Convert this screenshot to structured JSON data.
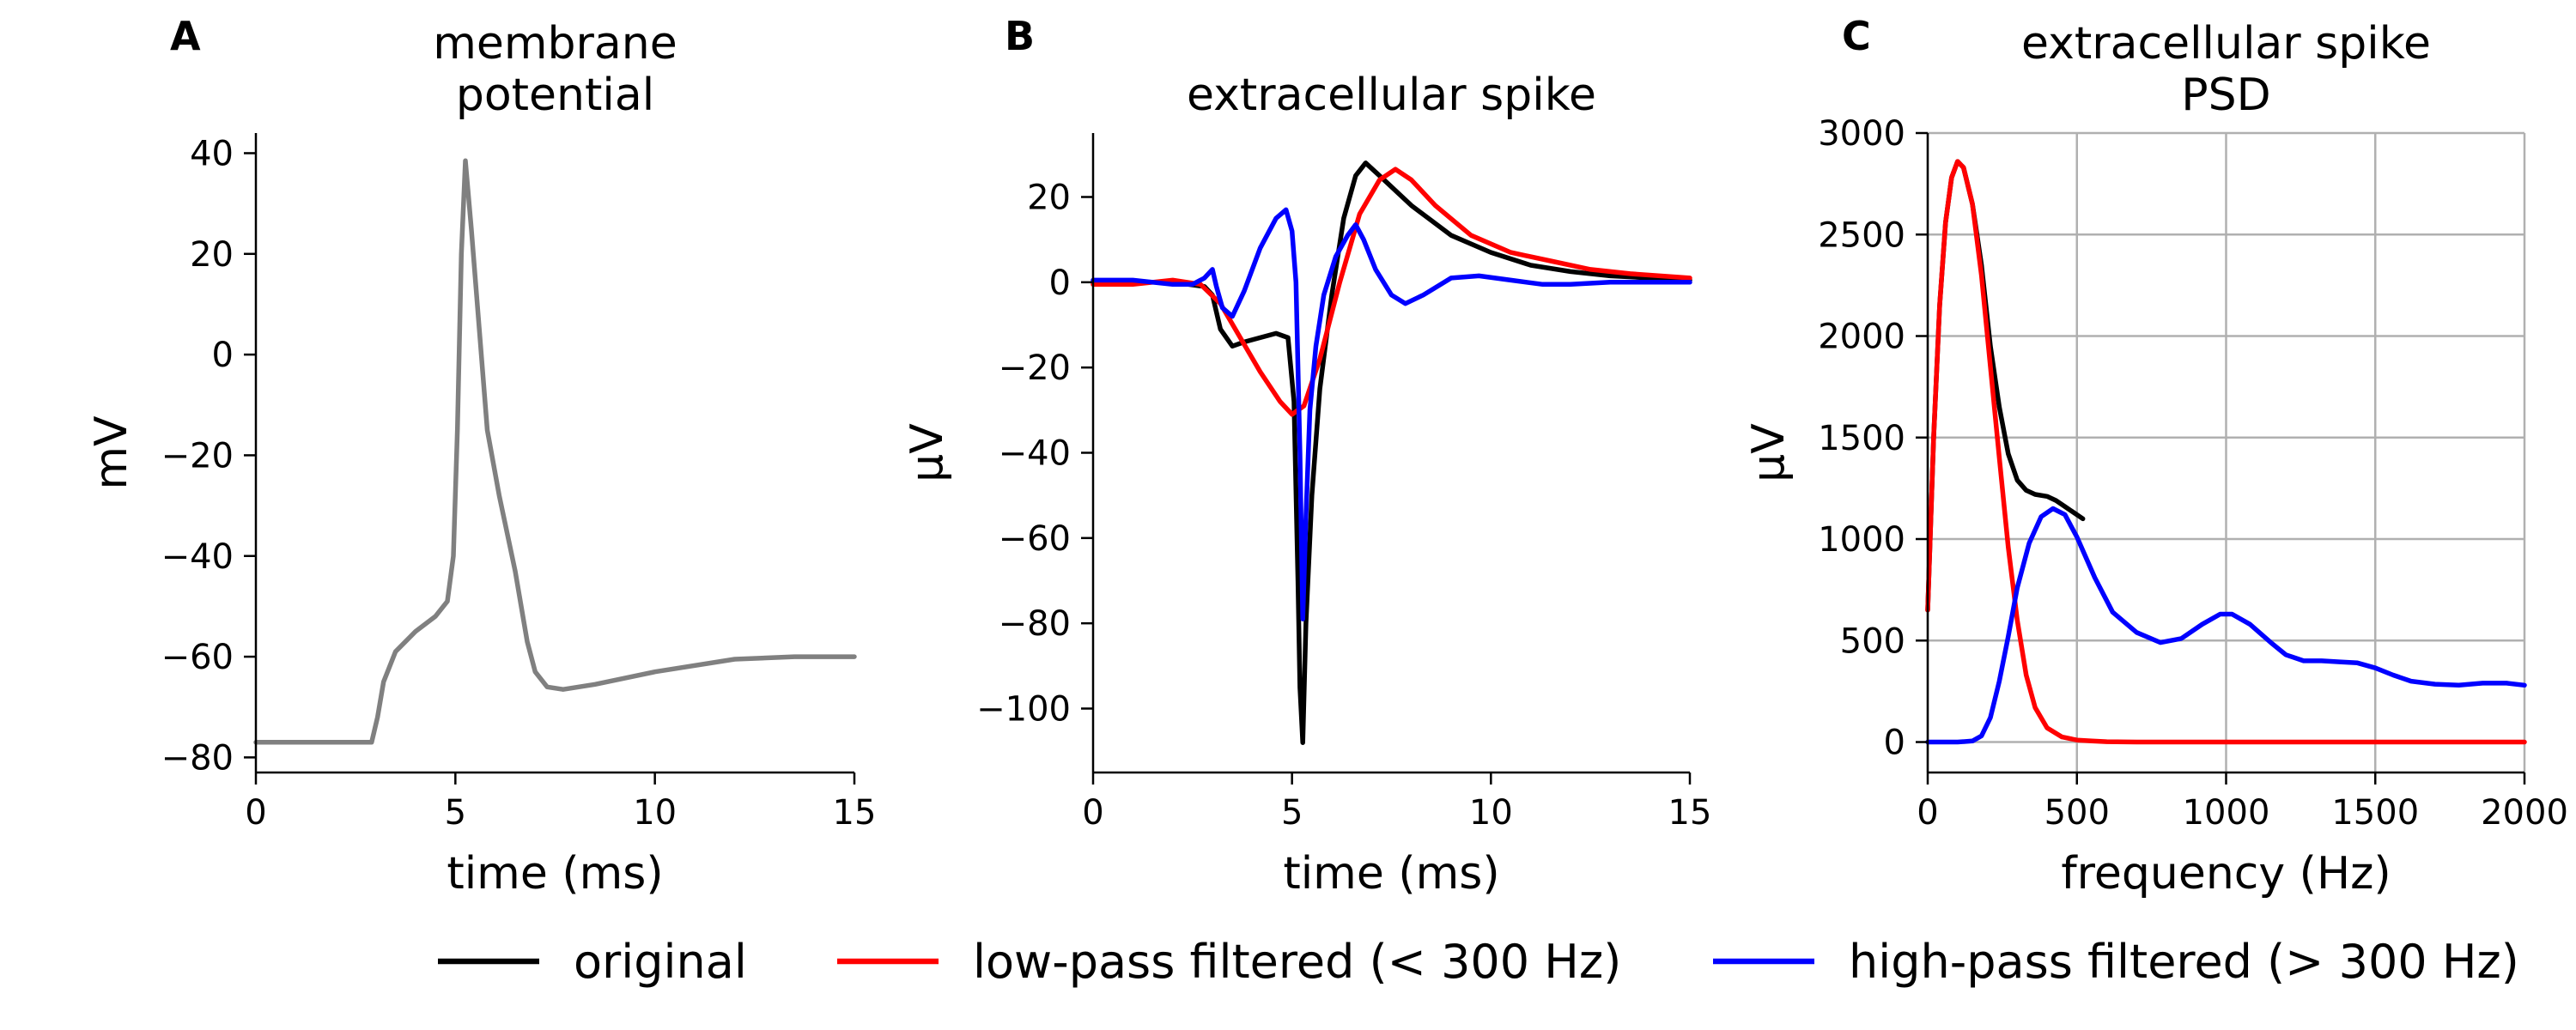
{
  "colors": {
    "membrane": "#808080",
    "original": "#000000",
    "lowpass": "#ff0000",
    "highpass": "#0000ff"
  },
  "legend": {
    "placement": "bottom-center",
    "entries": [
      {
        "label": "original",
        "color": "#000000"
      },
      {
        "label": "low-pass filtered (< 300 Hz)",
        "color": "#ff0000"
      },
      {
        "label": "high-pass filtered  (> 300 Hz)",
        "color": "#0000ff"
      }
    ]
  },
  "chart_data": [
    {
      "panel": "A",
      "type": "line",
      "title": [
        "membrane",
        "potential"
      ],
      "xlabel": "time (ms)",
      "ylabel": "mV",
      "xlim": [
        0,
        15
      ],
      "ylim": [
        -83,
        44
      ],
      "xticks": [
        0,
        5,
        10,
        15
      ],
      "yticks": [
        -80,
        -60,
        -40,
        -20,
        0,
        20,
        40
      ],
      "grid": false,
      "series": [
        {
          "key": "membrane",
          "x": [
            0,
            2.9,
            3.05,
            3.2,
            3.5,
            4.0,
            4.5,
            4.8,
            4.95,
            5.05,
            5.15,
            5.25,
            5.4,
            5.6,
            5.8,
            6.1,
            6.5,
            6.8,
            7.0,
            7.3,
            7.7,
            8.5,
            10,
            12,
            13.5,
            15
          ],
          "y": [
            -77,
            -77,
            -72,
            -65,
            -59,
            -55,
            -52,
            -49,
            -40,
            -15,
            20,
            38.5,
            25,
            5,
            -15,
            -28,
            -43,
            -57,
            -63,
            -66,
            -66.5,
            -65.5,
            -63,
            -60.5,
            -60,
            -60
          ]
        }
      ]
    },
    {
      "panel": "B",
      "type": "line",
      "title": [
        "extracellular spike"
      ],
      "xlabel": "time (ms)",
      "ylabel": "µV",
      "xlim": [
        0,
        15
      ],
      "ylim": [
        -115,
        35
      ],
      "xticks": [
        0,
        5,
        10,
        15
      ],
      "yticks": [
        -100,
        -80,
        -60,
        -40,
        -20,
        0,
        20
      ],
      "grid": false,
      "series": [
        {
          "key": "original",
          "x": [
            0,
            2.0,
            2.8,
            3.0,
            3.2,
            3.5,
            3.8,
            4.2,
            4.6,
            4.9,
            5.05,
            5.15,
            5.2,
            5.27,
            5.35,
            5.5,
            5.7,
            6.0,
            6.3,
            6.6,
            6.85,
            7.2,
            8.0,
            9.0,
            10,
            11,
            12,
            13,
            15
          ],
          "y": [
            0,
            0,
            -1,
            -3,
            -11,
            -15,
            -14,
            -13,
            -12,
            -13,
            -28,
            -70,
            -95,
            -108,
            -80,
            -50,
            -25,
            -3,
            15,
            25,
            28,
            25,
            18,
            11,
            7,
            4,
            2.5,
            1.5,
            0.5
          ]
        },
        {
          "key": "lowpass",
          "x": [
            0,
            1.0,
            2.0,
            2.7,
            3.2,
            3.7,
            4.2,
            4.7,
            5.0,
            5.3,
            5.7,
            6.2,
            6.7,
            7.2,
            7.6,
            8.0,
            8.6,
            9.5,
            10.5,
            11.5,
            12.5,
            13.5,
            15
          ],
          "y": [
            -0.5,
            -0.5,
            0.5,
            -0.5,
            -5,
            -13,
            -21,
            -28,
            -31,
            -29,
            -18,
            0,
            16,
            24,
            26.5,
            24,
            18,
            11,
            7,
            5,
            3,
            2,
            1
          ]
        },
        {
          "key": "highpass",
          "x": [
            0,
            1.0,
            2.0,
            2.5,
            2.8,
            3.0,
            3.1,
            3.25,
            3.5,
            3.8,
            4.2,
            4.6,
            4.85,
            5.0,
            5.1,
            5.2,
            5.27,
            5.35,
            5.45,
            5.6,
            5.8,
            6.1,
            6.4,
            6.6,
            6.8,
            7.1,
            7.5,
            7.85,
            8.3,
            9.0,
            9.7,
            10.5,
            11.3,
            12,
            13,
            14,
            15
          ],
          "y": [
            0.5,
            0.5,
            -0.5,
            -0.5,
            1,
            3,
            -1,
            -6,
            -8,
            -2,
            8,
            15,
            17,
            12,
            0,
            -40,
            -79,
            -55,
            -30,
            -15,
            -3,
            6,
            11,
            13.5,
            10,
            3,
            -3,
            -5,
            -3,
            1,
            1.5,
            0.5,
            -0.5,
            -0.5,
            0,
            0,
            0
          ]
        }
      ]
    },
    {
      "panel": "C",
      "type": "line",
      "title": [
        "extracellular spike",
        "PSD"
      ],
      "xlabel": "frequency (Hz)",
      "ylabel": "µV",
      "xlim": [
        0,
        2000
      ],
      "ylim": [
        -150,
        3000
      ],
      "xticks": [
        0,
        500,
        1000,
        1500,
        2000
      ],
      "yticks": [
        0,
        500,
        1000,
        1500,
        2000,
        2500,
        3000
      ],
      "grid": true,
      "series": [
        {
          "key": "original",
          "x": [
            0,
            20,
            40,
            60,
            80,
            100,
            120,
            150,
            180,
            210,
            240,
            270,
            300,
            330,
            360,
            400,
            430,
            460,
            490,
            520
          ],
          "y": [
            650,
            1500,
            2150,
            2560,
            2780,
            2860,
            2830,
            2650,
            2350,
            1950,
            1650,
            1420,
            1290,
            1240,
            1220,
            1210,
            1190,
            1160,
            1130,
            1100
          ]
        },
        {
          "key": "lowpass",
          "x": [
            0,
            20,
            40,
            60,
            80,
            100,
            120,
            150,
            180,
            210,
            240,
            270,
            300,
            330,
            360,
            400,
            450,
            500,
            550,
            600,
            700,
            800,
            2000
          ],
          "y": [
            650,
            1500,
            2150,
            2560,
            2780,
            2860,
            2830,
            2650,
            2300,
            1850,
            1400,
            960,
            600,
            330,
            170,
            70,
            25,
            10,
            5,
            2,
            0,
            0,
            0
          ]
        },
        {
          "key": "highpass",
          "x": [
            0,
            100,
            150,
            180,
            210,
            240,
            270,
            300,
            340,
            380,
            420,
            460,
            500,
            560,
            620,
            700,
            780,
            850,
            920,
            980,
            1020,
            1080,
            1150,
            1200,
            1260,
            1320,
            1380,
            1440,
            1500,
            1560,
            1620,
            1700,
            1780,
            1860,
            1940,
            2000
          ],
          "y": [
            0,
            0,
            5,
            30,
            120,
            300,
            520,
            760,
            980,
            1110,
            1150,
            1120,
            1010,
            810,
            640,
            540,
            490,
            510,
            580,
            630,
            630,
            580,
            490,
            430,
            400,
            400,
            395,
            390,
            365,
            330,
            300,
            285,
            280,
            290,
            290,
            280
          ]
        }
      ]
    }
  ]
}
